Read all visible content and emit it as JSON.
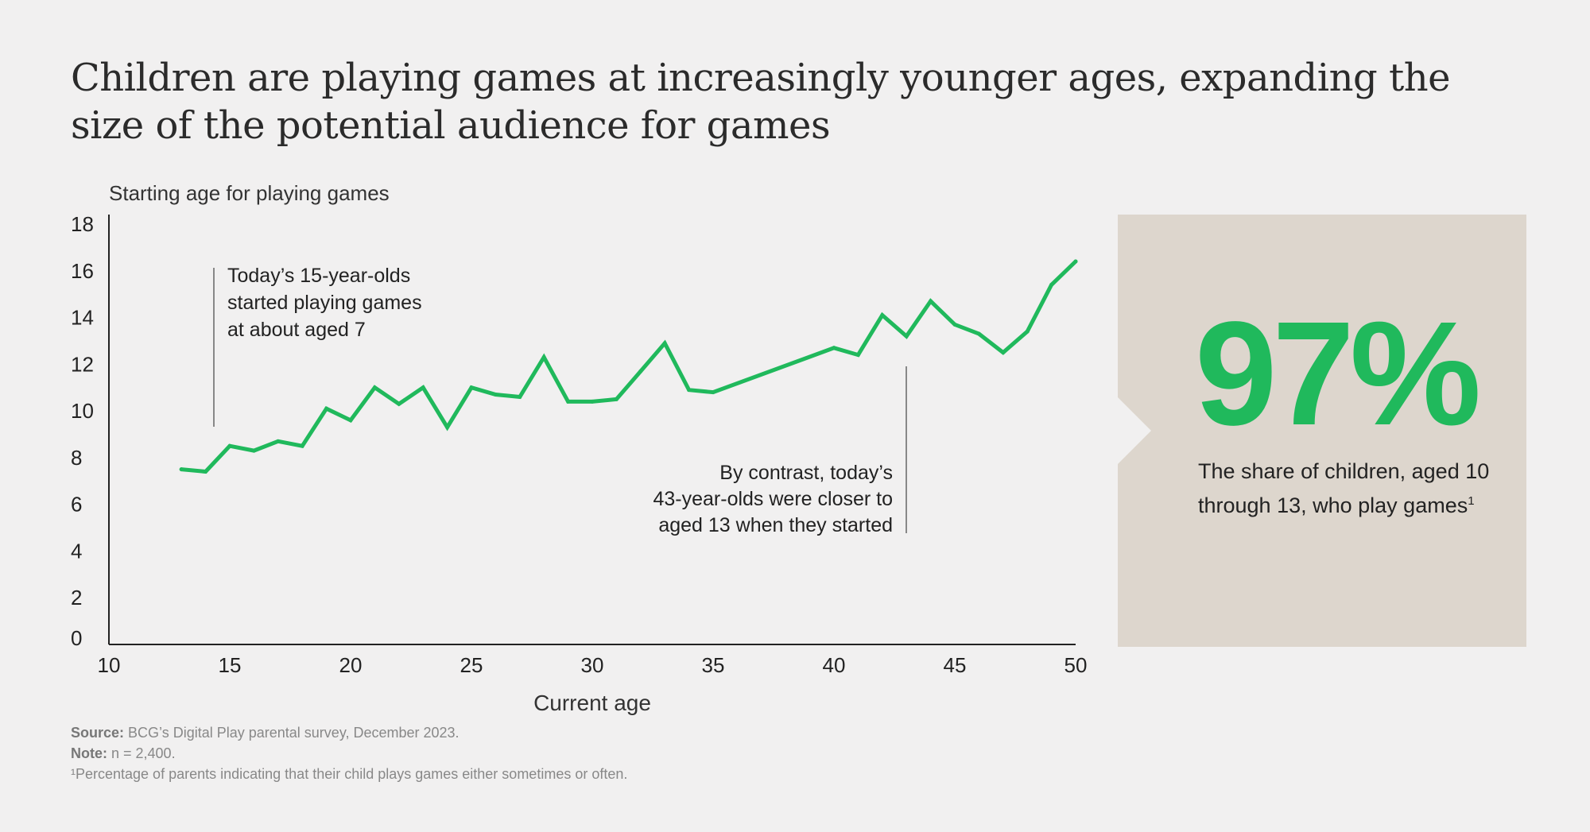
{
  "title": "Children are playing games at increasingly younger ages, expanding the size of the potential audience for games",
  "colors": {
    "accent": "#20b95c",
    "panel": "#ddd6cd",
    "background": "#f1f0f0",
    "axis": "#222222",
    "leader": "#888888"
  },
  "chart_data": {
    "type": "line",
    "title": "Starting age for playing games",
    "xlabel": "Current age",
    "ylabel": "Starting age for playing games",
    "xlim": [
      10,
      50
    ],
    "ylim": [
      0,
      18
    ],
    "xticks": [
      10,
      15,
      20,
      25,
      30,
      35,
      40,
      45,
      50
    ],
    "yticks": [
      0,
      2,
      4,
      6,
      8,
      10,
      12,
      14,
      16,
      18
    ],
    "series": [
      {
        "name": "Starting age",
        "x": [
          13,
          14,
          15,
          16,
          17,
          18,
          19,
          20,
          21,
          22,
          23,
          24,
          25,
          26,
          27,
          28,
          29,
          30,
          31,
          32,
          33,
          34,
          35,
          40,
          41,
          42,
          43,
          44,
          45,
          46,
          47,
          48,
          49,
          50
        ],
        "values": [
          7.5,
          7.4,
          8.5,
          8.3,
          8.7,
          8.5,
          10.1,
          9.6,
          11.0,
          10.3,
          11.0,
          9.3,
          11.0,
          10.7,
          10.6,
          12.3,
          10.4,
          10.4,
          10.5,
          11.7,
          12.9,
          10.9,
          10.8,
          12.7,
          12.4,
          14.1,
          13.2,
          14.7,
          13.7,
          13.3,
          12.5,
          13.4,
          15.4,
          16.4
        ]
      }
    ],
    "annotations": [
      {
        "text_lines": [
          "Today’s 15-year-olds",
          "started playing games",
          "at about aged 7"
        ]
      },
      {
        "text_lines": [
          "By contrast, today’s",
          "43-year-olds were closer to",
          "aged 13 when they started"
        ]
      }
    ]
  },
  "stat": {
    "value": "97%",
    "description": "The share of children, aged 10 through 13, who play games",
    "footnote_marker": "1"
  },
  "footer": {
    "source_label": "Source:",
    "source_text": " BCG’s Digital Play parental survey, December 2023.",
    "note_label": "Note:",
    "note_text": " n = 2,400.",
    "footnote": "¹Percentage of parents indicating that their child plays games either sometimes or often."
  }
}
